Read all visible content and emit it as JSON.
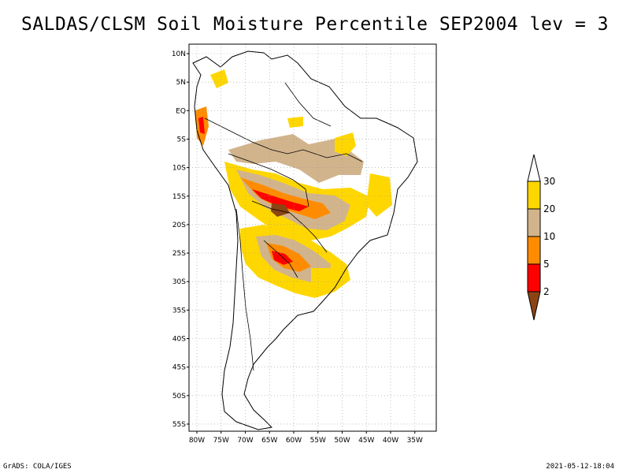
{
  "title": "SALDAS/CLSM Soil Moisture Percentile SEP2004 lev = 3",
  "map": {
    "lat_ticks": [
      "10N",
      "5N",
      "EQ",
      "5S",
      "10S",
      "15S",
      "20S",
      "25S",
      "30S",
      "35S",
      "40S",
      "45S",
      "50S",
      "55S"
    ],
    "lon_ticks": [
      "80W",
      "75W",
      "70W",
      "65W",
      "60W",
      "55W",
      "50W",
      "45W",
      "40W",
      "35W"
    ],
    "lat_values": [
      10,
      5,
      0,
      -5,
      -10,
      -15,
      -20,
      -25,
      -30,
      -35,
      -40,
      -45,
      -50,
      -55
    ],
    "lon_values": [
      -80,
      -75,
      -70,
      -65,
      -60,
      -55,
      -50,
      -45,
      -40,
      -35
    ],
    "grid": true
  },
  "legend": {
    "labels": [
      "2",
      "5",
      "10",
      "20",
      "30"
    ],
    "bins": [
      {
        "range": "<2",
        "color": "#8B4513"
      },
      {
        "range": "2-5",
        "color": "#FF0000"
      },
      {
        "range": "5-10",
        "color": "#FF8C00"
      },
      {
        "range": "10-20",
        "color": "#D2B48C"
      },
      {
        "range": "20-30",
        "color": "#FFD700"
      },
      {
        "range": ">30",
        "color": "#FFFFFF"
      }
    ]
  },
  "footer": {
    "left": "GrADS: COLA/IGES",
    "right": "2021-05-12-18:04"
  }
}
